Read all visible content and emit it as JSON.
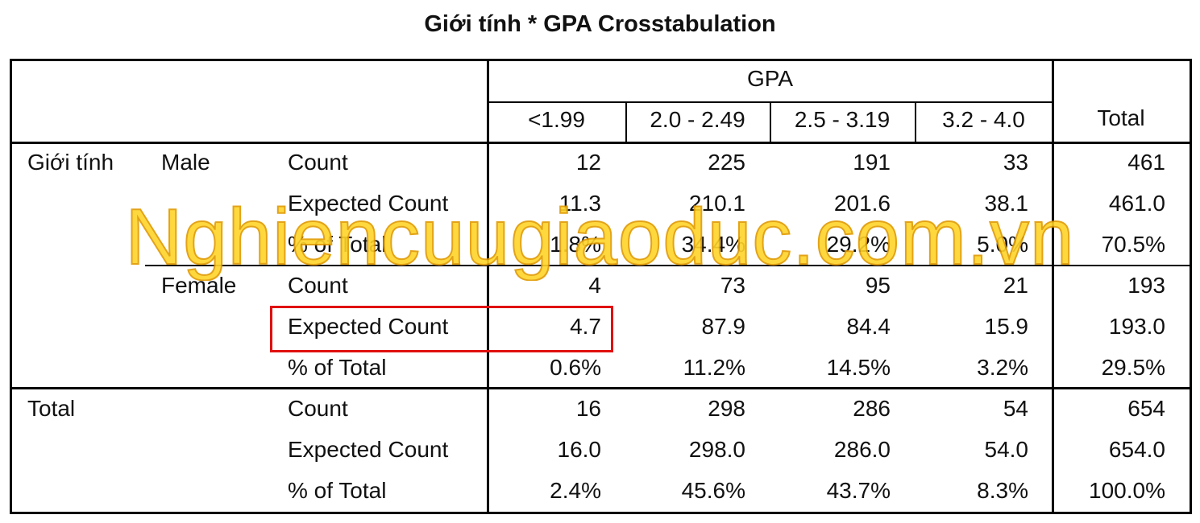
{
  "title": "Giới tính * GPA Crosstabulation",
  "watermark": "Nghiencuugiaoduc.com.vn",
  "header": {
    "group": "GPA",
    "columns": [
      "<1.99",
      "2.0 - 2.49",
      "2.5 - 3.19",
      "3.2 - 4.0"
    ],
    "total": "Total"
  },
  "row_groups": [
    {
      "label": "Giới tính",
      "subgroups": [
        {
          "label": "Male",
          "rows": [
            {
              "stat": "Count",
              "values": [
                "12",
                "225",
                "191",
                "33",
                "461"
              ]
            },
            {
              "stat": "Expected Count",
              "values": [
                "11.3",
                "210.1",
                "201.6",
                "38.1",
                "461.0"
              ]
            },
            {
              "stat": "% of Total",
              "values": [
                "1.8%",
                "34.4%",
                "29.2%",
                "5.0%",
                "70.5%"
              ]
            }
          ]
        },
        {
          "label": "Female",
          "rows": [
            {
              "stat": "Count",
              "values": [
                "4",
                "73",
                "95",
                "21",
                "193"
              ]
            },
            {
              "stat": "Expected Count",
              "values": [
                "4.7",
                "87.9",
                "84.4",
                "15.9",
                "193.0"
              ]
            },
            {
              "stat": "% of Total",
              "values": [
                "0.6%",
                "11.2%",
                "14.5%",
                "3.2%",
                "29.5%"
              ]
            }
          ]
        }
      ]
    },
    {
      "label": "Total",
      "subgroups": [
        {
          "rows": [
            {
              "stat": "Count",
              "values": [
                "16",
                "298",
                "286",
                "54",
                "654"
              ]
            },
            {
              "stat": "Expected Count",
              "values": [
                "16.0",
                "298.0",
                "286.0",
                "54.0",
                "654.0"
              ]
            },
            {
              "stat": "% of Total",
              "values": [
                "2.4%",
                "45.6%",
                "43.7%",
                "8.3%",
                "100.0%"
              ]
            }
          ]
        }
      ]
    }
  ]
}
